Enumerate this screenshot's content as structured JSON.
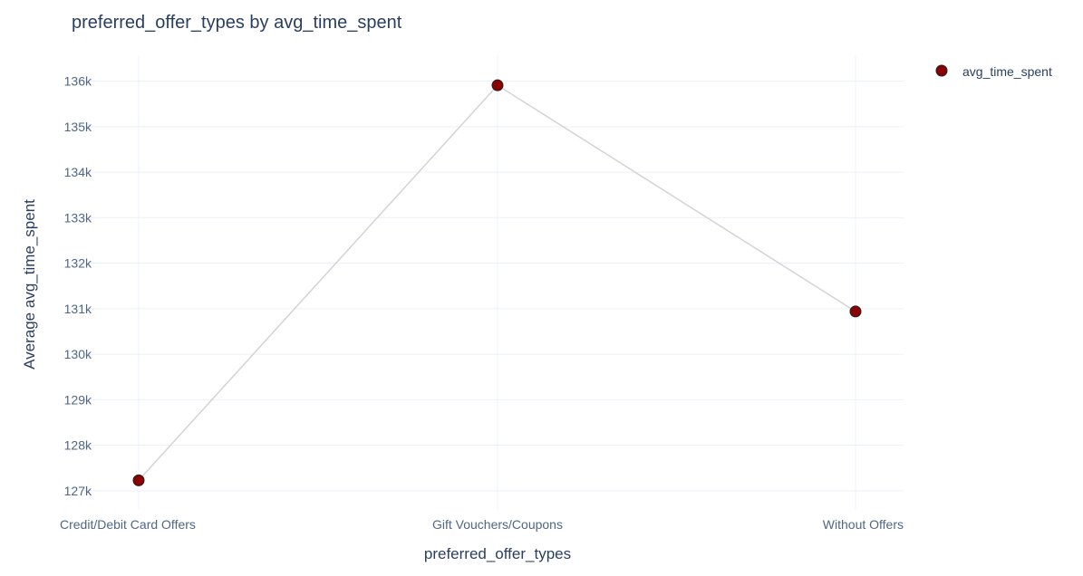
{
  "chart_data": {
    "type": "line",
    "title": "preferred_offer_types by avg_time_spent",
    "xlabel": "preferred_offer_types",
    "ylabel": "Average avg_time_spent",
    "categories": [
      "Credit/Debit Card Offers",
      "Gift Vouchers/Coupons",
      "Without Offers"
    ],
    "series": [
      {
        "name": "avg_time_spent",
        "values": [
          127230,
          135910,
          130940
        ],
        "marker_color": "#8b0000",
        "line_color": "#d3d3d3"
      }
    ],
    "ylim": [
      126600,
      136550
    ],
    "y_ticks": [
      127000,
      128000,
      129000,
      130000,
      131000,
      132000,
      133000,
      134000,
      135000,
      136000
    ],
    "y_tick_labels": [
      "127k",
      "128k",
      "129k",
      "130k",
      "131k",
      "132k",
      "133k",
      "134k",
      "135k",
      "136k"
    ],
    "grid": true,
    "legend_position": "top-right"
  }
}
